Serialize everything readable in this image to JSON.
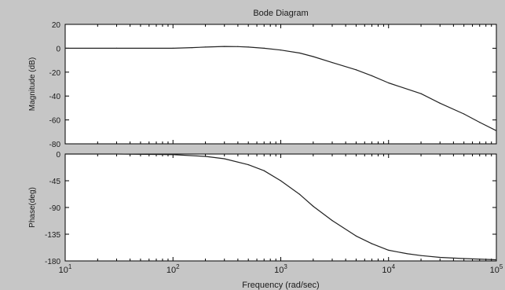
{
  "figure": {
    "background": "#c6c6c6",
    "axes_background": "#ffffff",
    "line_color": "#222222"
  },
  "chart_data": [
    {
      "type": "line",
      "panel": "magnitude",
      "title": "Bode Diagram",
      "ylabel": "Magnitude (dB)",
      "xlabel": "",
      "xscale": "log",
      "xlim": [
        10,
        100000
      ],
      "ylim": [
        -80,
        20
      ],
      "yticks": [
        20,
        0,
        -20,
        -40,
        -60,
        -80
      ],
      "xtick_labels": [],
      "grid": false,
      "series": [
        {
          "x": [
            10,
            30,
            100,
            150,
            200,
            300,
            400,
            500,
            700,
            1000,
            1500,
            2000,
            3000,
            5000,
            7000,
            10000,
            20000,
            30000,
            50000,
            70000,
            100000
          ],
          "values": [
            0,
            0,
            0,
            0.5,
            1.0,
            1.5,
            1.4,
            1.0,
            0,
            -1.5,
            -4,
            -7,
            -12,
            -18,
            -23,
            -29,
            -38,
            -46,
            -55,
            -62,
            -69
          ]
        }
      ]
    },
    {
      "type": "line",
      "panel": "phase",
      "title": "",
      "ylabel": "Phase(deg)",
      "xlabel": "Frequency  (rad/sec)",
      "xscale": "log",
      "xlim": [
        10,
        100000
      ],
      "ylim": [
        -180,
        0
      ],
      "yticks": [
        0,
        -45,
        -90,
        -135,
        -180
      ],
      "xtick_labels": [
        {
          "x": 10,
          "base": "10",
          "exp": "1"
        },
        {
          "x": 100,
          "base": "10",
          "exp": "2"
        },
        {
          "x": 1000,
          "base": "10",
          "exp": "3"
        },
        {
          "x": 10000,
          "base": "10",
          "exp": "4"
        },
        {
          "x": 100000,
          "base": "10",
          "exp": "5"
        }
      ],
      "grid": false,
      "series": [
        {
          "x": [
            10,
            30,
            100,
            200,
            300,
            500,
            700,
            1000,
            1500,
            2000,
            3000,
            5000,
            7000,
            10000,
            15000,
            20000,
            30000,
            50000,
            100000
          ],
          "values": [
            0,
            0,
            -1,
            -4,
            -8,
            -18,
            -28,
            -45,
            -68,
            -88,
            -112,
            -138,
            -151,
            -162,
            -168,
            -171,
            -174,
            -176,
            -178
          ]
        }
      ]
    }
  ]
}
